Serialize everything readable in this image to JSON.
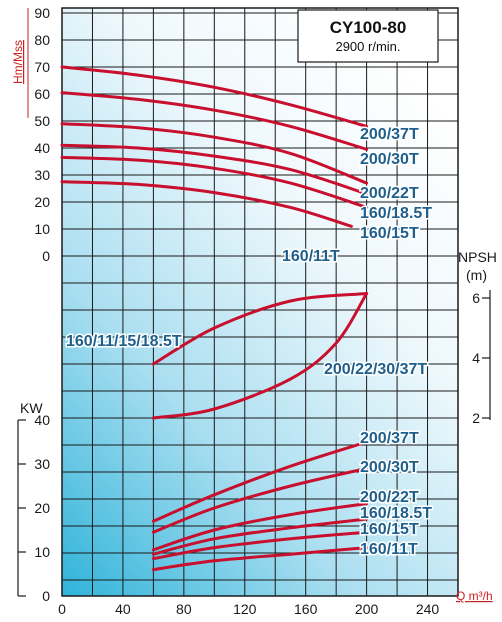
{
  "chart_data": {
    "type": "line",
    "model": "CY100-80",
    "speed": "2900 r/min.",
    "x_unit": "Q m³/h",
    "head_unit": "Hm/Mss",
    "power_unit": "KW",
    "npsh_unit": "NPSH",
    "npsh_unit_sub": "(m)",
    "x_ticks": [
      0,
      40,
      80,
      120,
      160,
      200,
      240
    ],
    "head_ticks": [
      0,
      10,
      20,
      30,
      40,
      50,
      60,
      70,
      80,
      90
    ],
    "power_ticks": [
      0,
      10,
      20,
      30,
      40
    ],
    "npsh_ticks": [
      2,
      4,
      6
    ],
    "xlim": [
      0,
      260
    ],
    "head_series": [
      {
        "name": "200/37T",
        "x": [
          0,
          50,
          100,
          150,
          200
        ],
        "y": [
          70,
          67,
          62.5,
          56,
          48
        ]
      },
      {
        "name": "200/30T",
        "x": [
          0,
          50,
          100,
          150,
          200
        ],
        "y": [
          60.5,
          58,
          54,
          48,
          39.5
        ]
      },
      {
        "name": "200/22T",
        "x": [
          0,
          50,
          100,
          150,
          200
        ],
        "y": [
          49,
          47.5,
          44,
          38,
          27
        ]
      },
      {
        "name": "160/18.5T",
        "x": [
          0,
          50,
          100,
          150,
          200
        ],
        "y": [
          41,
          40,
          37,
          32,
          23
        ]
      },
      {
        "name": "160/15T",
        "x": [
          0,
          50,
          100,
          150,
          200
        ],
        "y": [
          36.5,
          35.5,
          32.5,
          27,
          18
        ]
      },
      {
        "name": "160/11T",
        "x": [
          0,
          50,
          100,
          150,
          190
        ],
        "y": [
          27.5,
          26.5,
          23.5,
          18,
          11
        ]
      }
    ],
    "npsh_series": [
      {
        "name": "160/11/15/18.5T",
        "x": [
          60,
          100,
          150,
          200
        ],
        "y": [
          3.8,
          5.0,
          5.9,
          6.15
        ]
      },
      {
        "name": "200/22/30/37T",
        "x": [
          60,
          100,
          150,
          180,
          200
        ],
        "y": [
          2.0,
          2.3,
          3.3,
          4.5,
          6.15
        ]
      }
    ],
    "power_series": [
      {
        "name": "200/37T",
        "x": [
          60,
          100,
          150,
          200
        ],
        "y": [
          17,
          23,
          29.5,
          35
        ]
      },
      {
        "name": "200/30T",
        "x": [
          60,
          100,
          150,
          200
        ],
        "y": [
          14.5,
          20,
          25,
          29
        ]
      },
      {
        "name": "200/22T",
        "x": [
          60,
          100,
          150,
          200
        ],
        "y": [
          10.5,
          15,
          18.5,
          21
        ]
      },
      {
        "name": "160/18.5T",
        "x": [
          60,
          100,
          150,
          200
        ],
        "y": [
          9.5,
          13,
          15.5,
          17.5
        ]
      },
      {
        "name": "160/15T",
        "x": [
          60,
          100,
          150,
          200
        ],
        "y": [
          8.5,
          11,
          13,
          14.5
        ]
      },
      {
        "name": "160/11T",
        "x": [
          60,
          100,
          150,
          200
        ],
        "y": [
          6,
          8,
          9.5,
          11
        ]
      }
    ]
  }
}
